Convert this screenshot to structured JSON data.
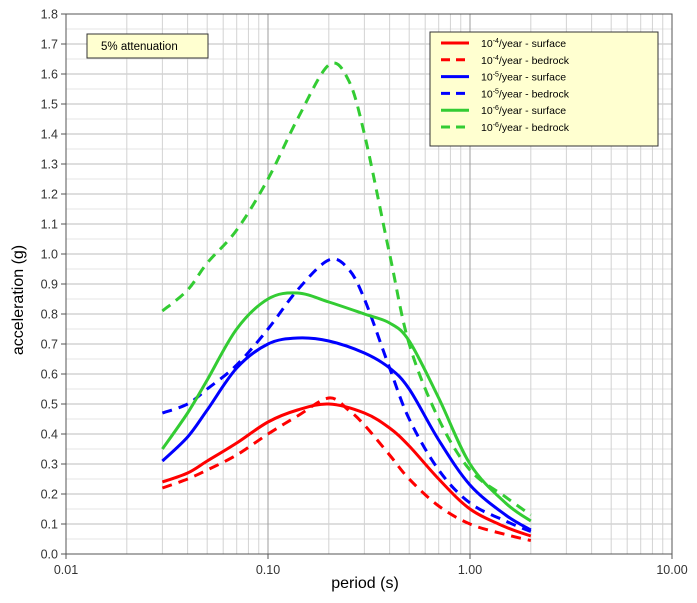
{
  "chart_data": {
    "type": "line",
    "title": "",
    "xlabel": "period (s)",
    "ylabel": "acceleration (g)",
    "xscale": "log",
    "xlim": [
      0.01,
      10
    ],
    "ylim": [
      0,
      1.8
    ],
    "grid": true,
    "legend_position": "top-right",
    "annotation": "5% attenuation",
    "x_ticks": [
      "0.01",
      "0.10",
      "1.00",
      "10.00"
    ],
    "y_ticks": [
      "0.0",
      "0.1",
      "0.2",
      "0.3",
      "0.4",
      "0.5",
      "0.6",
      "0.7",
      "0.8",
      "0.9",
      "1.0",
      "1.1",
      "1.2",
      "1.3",
      "1.4",
      "1.5",
      "1.6",
      "1.7",
      "1.8"
    ],
    "series": [
      {
        "name": "10-4/year - surface",
        "legend_base": "10",
        "legend_exp": "-4",
        "legend_suffix": "/year - surface",
        "color": "#ff0000",
        "dash": "solid",
        "x": [
          0.03,
          0.04,
          0.05,
          0.07,
          0.1,
          0.14,
          0.2,
          0.3,
          0.4,
          0.5,
          0.7,
          1.0,
          1.5,
          2.0
        ],
        "y": [
          0.24,
          0.27,
          0.31,
          0.37,
          0.44,
          0.48,
          0.5,
          0.47,
          0.42,
          0.36,
          0.25,
          0.15,
          0.09,
          0.06
        ]
      },
      {
        "name": "10-4/year - bedrock",
        "legend_base": "10",
        "legend_exp": "-4",
        "legend_suffix": "/year - bedrock",
        "color": "#ff0000",
        "dash": "dashed",
        "x": [
          0.03,
          0.04,
          0.05,
          0.07,
          0.1,
          0.14,
          0.2,
          0.25,
          0.3,
          0.4,
          0.5,
          0.7,
          1.0,
          1.5,
          2.0
        ],
        "y": [
          0.22,
          0.25,
          0.28,
          0.33,
          0.4,
          0.46,
          0.52,
          0.48,
          0.43,
          0.33,
          0.25,
          0.16,
          0.1,
          0.065,
          0.045
        ]
      },
      {
        "name": "10-5/year - surface",
        "legend_base": "10",
        "legend_exp": "-5",
        "legend_suffix": "/year - surface",
        "color": "#0000ff",
        "dash": "solid",
        "x": [
          0.03,
          0.04,
          0.05,
          0.07,
          0.1,
          0.14,
          0.2,
          0.3,
          0.4,
          0.5,
          0.7,
          1.0,
          1.5,
          2.0
        ],
        "y": [
          0.31,
          0.39,
          0.48,
          0.62,
          0.7,
          0.72,
          0.71,
          0.67,
          0.62,
          0.55,
          0.38,
          0.23,
          0.13,
          0.08
        ]
      },
      {
        "name": "10-5/year - bedrock",
        "legend_base": "10",
        "legend_exp": "-5",
        "legend_suffix": "/year - bedrock",
        "color": "#0000ff",
        "dash": "dashed",
        "x": [
          0.03,
          0.04,
          0.05,
          0.07,
          0.1,
          0.14,
          0.2,
          0.25,
          0.3,
          0.4,
          0.5,
          0.7,
          1.0,
          1.5,
          2.0
        ],
        "y": [
          0.47,
          0.5,
          0.55,
          0.63,
          0.75,
          0.88,
          0.98,
          0.95,
          0.85,
          0.62,
          0.45,
          0.28,
          0.17,
          0.11,
          0.075
        ]
      },
      {
        "name": "10-6/year - surface",
        "legend_base": "10",
        "legend_exp": "-6",
        "legend_suffix": "/year - surface",
        "color": "#33cc33",
        "dash": "solid",
        "x": [
          0.03,
          0.04,
          0.05,
          0.07,
          0.1,
          0.14,
          0.2,
          0.3,
          0.4,
          0.5,
          0.7,
          1.0,
          1.5,
          2.0
        ],
        "y": [
          0.35,
          0.47,
          0.58,
          0.75,
          0.85,
          0.87,
          0.84,
          0.8,
          0.77,
          0.71,
          0.52,
          0.3,
          0.17,
          0.11
        ]
      },
      {
        "name": "10-6/year - bedrock",
        "legend_base": "10",
        "legend_exp": "-6",
        "legend_suffix": "/year - bedrock",
        "color": "#33cc33",
        "dash": "dashed",
        "x": [
          0.03,
          0.04,
          0.05,
          0.07,
          0.1,
          0.14,
          0.2,
          0.25,
          0.3,
          0.4,
          0.5,
          0.7,
          1.0,
          1.5,
          2.0
        ],
        "y": [
          0.81,
          0.88,
          0.97,
          1.08,
          1.25,
          1.45,
          1.63,
          1.58,
          1.4,
          1.0,
          0.7,
          0.45,
          0.28,
          0.19,
          0.13
        ]
      }
    ]
  }
}
